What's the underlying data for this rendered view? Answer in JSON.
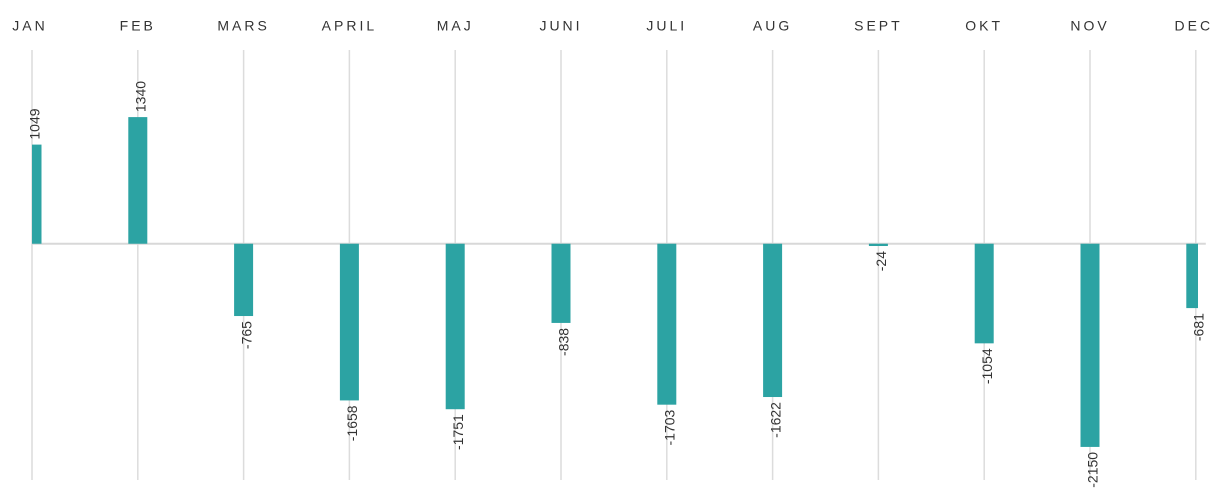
{
  "chart_data": {
    "type": "bar",
    "categories": [
      "JAN",
      "FEB",
      "MARS",
      "APRIL",
      "MAJ",
      "JUNI",
      "JULI",
      "AUG",
      "SEPT",
      "OKT",
      "NOV",
      "DEC"
    ],
    "values": [
      1049,
      1340,
      -765,
      -1658,
      -1751,
      -838,
      -1703,
      -1622,
      -24,
      -1054,
      -2150,
      -681
    ],
    "color": "#2ca3a3",
    "ylim": [
      -2500,
      2050
    ],
    "grid": true
  }
}
